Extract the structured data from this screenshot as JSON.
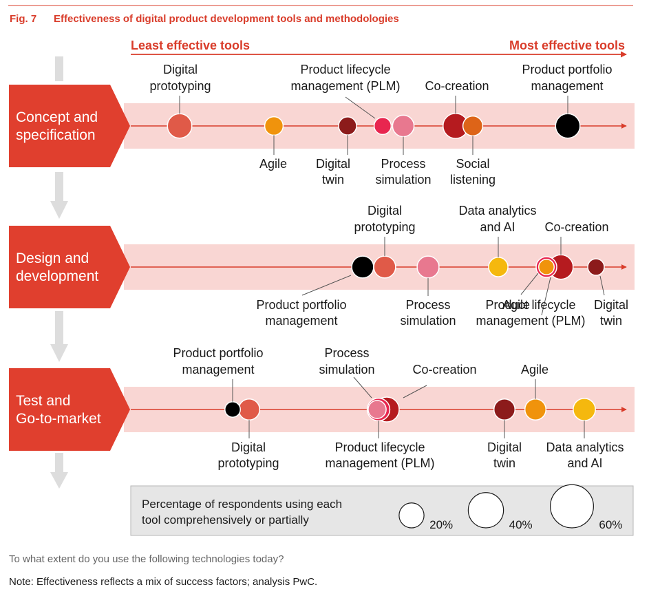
{
  "header": {
    "fig_label": "Fig. 7",
    "title": "Effectiveness of digital product development tools and methodologies"
  },
  "axis": {
    "left_label": "Least effective tools",
    "right_label": "Most effective tools"
  },
  "colors": {
    "accent": "#d93c2a",
    "band": "#f9d6d3",
    "stage_box": "#e03f2e",
    "down_arrow": "#dddddd",
    "legend_bg": "#e6e6e6"
  },
  "chart_data": {
    "type": "bubble",
    "x_meaning": "Effectiveness (least to most effective tools)",
    "size_meaning": "Percentage of respondents using each tool comprehensively or partially",
    "stages": [
      {
        "lines": [
          "Concept and",
          "specification"
        ],
        "tools": [
          {
            "lines": [
              "Digital",
              "prototyping"
            ],
            "color": "#e05a48",
            "size": 35,
            "label_pos": "above"
          },
          {
            "lines": [
              "Agile"
            ],
            "color": "#f0930c",
            "size": 20,
            "label_pos": "below"
          },
          {
            "lines": [
              "Digital",
              "twin"
            ],
            "color": "#8c1b1b",
            "size": 19,
            "label_pos": "below"
          },
          {
            "lines": [
              "Product lifecycle",
              "management (PLM)"
            ],
            "color": "#e8264f",
            "size": 17,
            "label_pos": "above"
          },
          {
            "lines": [
              "Process",
              "simulation"
            ],
            "color": "#e8788f",
            "size": 27,
            "label_pos": "below"
          },
          {
            "lines": [
              "Co-creation"
            ],
            "color": "#b51b1f",
            "size": 37,
            "label_pos": "above"
          },
          {
            "lines": [
              "Social",
              "listening"
            ],
            "color": "#dd6418",
            "size": 23,
            "label_pos": "below"
          },
          {
            "lines": [
              "Product portfolio",
              "management"
            ],
            "color": "#000000",
            "size": 35,
            "label_pos": "above"
          }
        ]
      },
      {
        "lines": [
          "Design and",
          "development"
        ],
        "tools": [
          {
            "lines": [
              "Product portfolio",
              "management"
            ],
            "color": "#000000",
            "size": 28,
            "label_pos": "below"
          },
          {
            "lines": [
              "Digital",
              "prototyping"
            ],
            "color": "#e05a48",
            "size": 28,
            "label_pos": "above"
          },
          {
            "lines": [
              "Process",
              "simulation"
            ],
            "color": "#e8788f",
            "size": 28,
            "label_pos": "below"
          },
          {
            "lines": [
              "Data analytics",
              "and AI"
            ],
            "color": "#f5b80e",
            "size": 22,
            "label_pos": "above"
          },
          {
            "lines": [
              "Co-creation"
            ],
            "color": "#b51b1f",
            "size": 35,
            "label_pos": "above"
          },
          {
            "lines": [
              "Product lifecycle",
              "management (PLM)"
            ],
            "color": "#e8264f",
            "size": 25,
            "label_pos": "below"
          },
          {
            "lines": [
              "Agile"
            ],
            "color": "#f0930c",
            "size": 14,
            "label_pos": "below"
          },
          {
            "lines": [
              "Digital",
              "twin"
            ],
            "color": "#8c1b1b",
            "size": 16,
            "label_pos": "below"
          }
        ]
      },
      {
        "lines": [
          "Test and",
          "Go-to-market"
        ],
        "tools": [
          {
            "lines": [
              "Product portfolio",
              "management"
            ],
            "color": "#000000",
            "size": 14,
            "label_pos": "above"
          },
          {
            "lines": [
              "Digital",
              "prototyping"
            ],
            "color": "#e05a48",
            "size": 26,
            "label_pos": "below"
          },
          {
            "lines": [
              "Co-creation"
            ],
            "color": "#b51b1f",
            "size": 36,
            "label_pos": "above"
          },
          {
            "lines": [
              "Product lifecycle",
              "management (PLM)"
            ],
            "color": "#e8264f",
            "size": 30,
            "label_pos": "below"
          },
          {
            "lines": [
              "Process",
              "simulation"
            ],
            "color": "#e8788f",
            "size": 19,
            "label_pos": "above"
          },
          {
            "lines": [
              "Digital",
              "twin"
            ],
            "color": "#8c1b1b",
            "size": 26,
            "label_pos": "below"
          },
          {
            "lines": [
              "Agile"
            ],
            "color": "#f0930c",
            "size": 26,
            "label_pos": "above"
          },
          {
            "lines": [
              "Data analytics",
              "and AI"
            ],
            "color": "#f5b80e",
            "size": 29,
            "label_pos": "below"
          }
        ]
      }
    ],
    "legend": {
      "lines": [
        "Percentage of respondents using each",
        "tool comprehensively or partially"
      ],
      "items": [
        {
          "label": "20%",
          "value": 20
        },
        {
          "label": "40%",
          "value": 40
        },
        {
          "label": "60%",
          "value": 60
        }
      ]
    }
  },
  "footer": {
    "question": "To what extent do you use the following technologies today?",
    "note": "Note: Effectiveness reflects a mix of success factors; analysis PwC."
  }
}
